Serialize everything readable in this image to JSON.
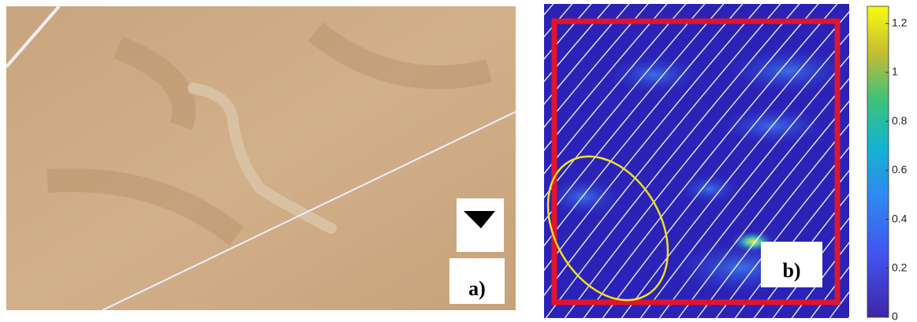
{
  "panels": [
    {
      "label": "a)"
    },
    {
      "label": "b)"
    }
  ],
  "colorbar": {
    "ylim": [
      0,
      1.27
    ],
    "yticks": [
      0,
      0.2,
      0.4,
      0.6,
      0.8,
      1,
      1.2
    ]
  }
}
